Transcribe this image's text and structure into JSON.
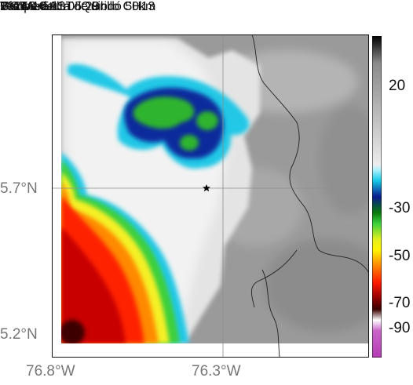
{
  "header": {
    "satellite": "GOES-EAST",
    "product": "Temperatura de Brillo CH13",
    "organization": "SIATA",
    "location": "Vía Medellín - Quibdó 50km",
    "datetime": "2024-10-01 05:29"
  },
  "axes": {
    "lat_labels": [
      "5.7°N",
      "5.2°N"
    ],
    "lon_labels": [
      "76.8°W",
      "76.3°W"
    ]
  },
  "colorbar": {
    "labels": [
      "20",
      "-30",
      "-50",
      "-70",
      "-90"
    ],
    "stops": [
      {
        "value": 30,
        "color": "#000000"
      },
      {
        "value": 20,
        "color": "#8a8a8a"
      },
      {
        "value": -18,
        "color": "#ececec"
      },
      {
        "value": -20,
        "color": "#aaf0ff"
      },
      {
        "value": -24,
        "color": "#14c8e6"
      },
      {
        "value": -30,
        "color": "#0a1a8c"
      },
      {
        "value": -36,
        "color": "#0a7a0a"
      },
      {
        "value": -40,
        "color": "#3ccf3c"
      },
      {
        "value": -46,
        "color": "#e6f01e"
      },
      {
        "value": -50,
        "color": "#fff200"
      },
      {
        "value": -56,
        "color": "#ff8000"
      },
      {
        "value": -62,
        "color": "#ff1a00"
      },
      {
        "value": -68,
        "color": "#8c0000"
      },
      {
        "value": -72,
        "color": "#3c0000"
      },
      {
        "value": -76,
        "color": "#ffffff"
      },
      {
        "value": -80,
        "color": "#c864c8"
      },
      {
        "value": -90,
        "color": "#b43cb4"
      }
    ]
  },
  "colors": {
    "grid": "#8c8c8c",
    "border_line": "#222222",
    "marker": "#000000"
  },
  "marker_icon": "star-icon"
}
